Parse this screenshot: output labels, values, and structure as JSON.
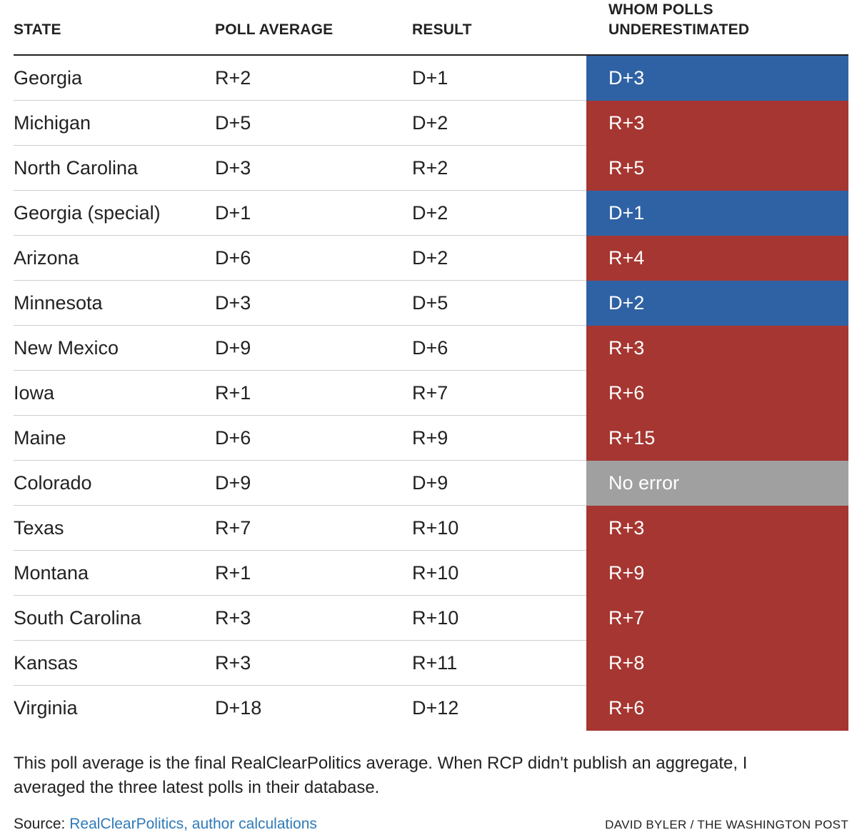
{
  "chart_data": {
    "type": "table",
    "columns": [
      "STATE",
      "POLL AVERAGE",
      "RESULT",
      "WHOM POLLS UNDERESTIMATED"
    ],
    "rows": [
      {
        "state": "Georgia",
        "poll_average": "R+2",
        "result": "D+1",
        "underestimated": "D+3",
        "party": "D"
      },
      {
        "state": "Michigan",
        "poll_average": "D+5",
        "result": "D+2",
        "underestimated": "R+3",
        "party": "R"
      },
      {
        "state": "North Carolina",
        "poll_average": "D+3",
        "result": "R+2",
        "underestimated": "R+5",
        "party": "R"
      },
      {
        "state": "Georgia (special)",
        "poll_average": "D+1",
        "result": "D+2",
        "underestimated": "D+1",
        "party": "D"
      },
      {
        "state": "Arizona",
        "poll_average": "D+6",
        "result": "D+2",
        "underestimated": "R+4",
        "party": "R"
      },
      {
        "state": "Minnesota",
        "poll_average": "D+3",
        "result": "D+5",
        "underestimated": "D+2",
        "party": "D"
      },
      {
        "state": "New Mexico",
        "poll_average": "D+9",
        "result": "D+6",
        "underestimated": "R+3",
        "party": "R"
      },
      {
        "state": "Iowa",
        "poll_average": "R+1",
        "result": "R+7",
        "underestimated": "R+6",
        "party": "R"
      },
      {
        "state": "Maine",
        "poll_average": "D+6",
        "result": "R+9",
        "underestimated": "R+15",
        "party": "R"
      },
      {
        "state": "Colorado",
        "poll_average": "D+9",
        "result": "D+9",
        "underestimated": "No error",
        "party": "none"
      },
      {
        "state": "Texas",
        "poll_average": "R+7",
        "result": "R+10",
        "underestimated": "R+3",
        "party": "R"
      },
      {
        "state": "Montana",
        "poll_average": "R+1",
        "result": "R+10",
        "underestimated": "R+9",
        "party": "R"
      },
      {
        "state": "South Carolina",
        "poll_average": "R+3",
        "result": "R+10",
        "underestimated": "R+7",
        "party": "R"
      },
      {
        "state": "Kansas",
        "poll_average": "R+3",
        "result": "R+11",
        "underestimated": "R+8",
        "party": "R"
      },
      {
        "state": "Virginia",
        "poll_average": "D+18",
        "result": "D+12",
        "underestimated": "R+6",
        "party": "R"
      }
    ]
  },
  "header": {
    "state": "STATE",
    "poll_average": "POLL AVERAGE",
    "result": "RESULT",
    "underestimated_line1": "WHOM POLLS",
    "underestimated_line2": "UNDERESTIMATED"
  },
  "footer": {
    "note": "This poll average is the final RealClearPolitics average. When RCP didn't publish an aggregate, I averaged the three latest polls in their database.",
    "source_label": "Source: ",
    "source_link": "RealClearPolitics, author calculations",
    "credit": "DAVID BYLER / THE WASHINGTON POST"
  },
  "colors": {
    "D": "#2f62a4",
    "R": "#a63631",
    "none": "#a0a0a0"
  }
}
